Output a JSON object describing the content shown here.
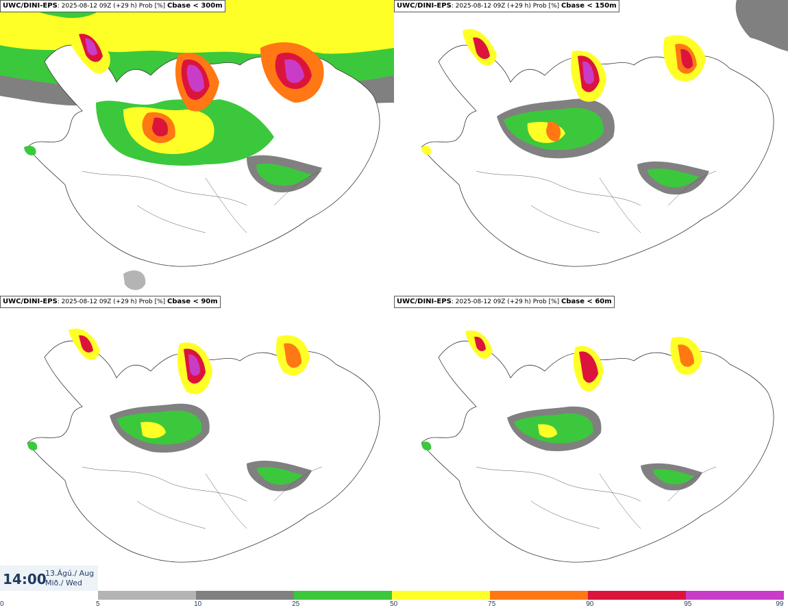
{
  "panels": [
    {
      "model": "UWC/DINI-EPS",
      "info": ": 2025-08-12 09Z (+29 h) Prob [%] ",
      "threshold": "Cbase < 300m"
    },
    {
      "model": "UWC/DINI-EPS",
      "info": ": 2025-08-12 09Z (+29 h) Prob [%] ",
      "threshold": "Cbase < 150m"
    },
    {
      "model": "UWC/DINI-EPS",
      "info": ": 2025-08-12 09Z (+29 h) Prob [%] ",
      "threshold": "Cbase < 90m"
    },
    {
      "model": "UWC/DINI-EPS",
      "info": ": 2025-08-12 09Z (+29 h) Prob [%] ",
      "threshold": "Cbase < 60m"
    }
  ],
  "valid_time": {
    "time": "14:00",
    "date_line1": "13.Ágú./ Aug",
    "date_line2": "Mið./ Wed"
  },
  "colorbar": {
    "ticks": [
      "0",
      "5",
      "10",
      "25",
      "50",
      "75",
      "90",
      "95",
      "99"
    ],
    "colors": [
      "#ffffff",
      "#b4b4b4",
      "#808080",
      "#3cc83c",
      "#ffff28",
      "#ff7814",
      "#dc143c",
      "#c83cc8",
      "#f5c8f5"
    ]
  }
}
